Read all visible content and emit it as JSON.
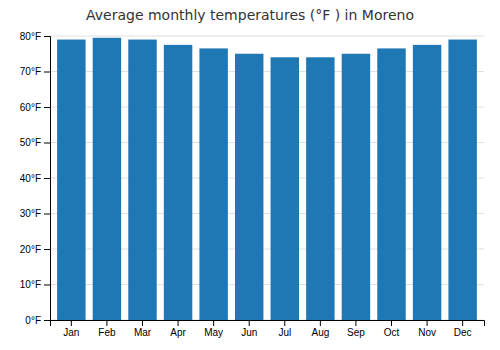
{
  "chart_data": {
    "type": "bar",
    "title": "Average monthly temperatures (°F ) in Moreno",
    "categories": [
      "Jan",
      "Feb",
      "Mar",
      "Apr",
      "May",
      "Jun",
      "Jul",
      "Aug",
      "Sep",
      "Oct",
      "Nov",
      "Dec"
    ],
    "values": [
      79,
      79.5,
      79,
      77.5,
      76.5,
      75,
      74,
      74,
      75,
      76.5,
      77.5,
      79
    ],
    "ylim": [
      0,
      80
    ],
    "yticks": [
      {
        "value": 0,
        "label": "0°F"
      },
      {
        "value": 10,
        "label": "10°F"
      },
      {
        "value": 20,
        "label": "20°F"
      },
      {
        "value": 30,
        "label": "30°F"
      },
      {
        "value": 40,
        "label": "40°F"
      },
      {
        "value": 50,
        "label": "50°F"
      },
      {
        "value": 60,
        "label": "60°F"
      },
      {
        "value": 70,
        "label": "70°F"
      },
      {
        "value": 80,
        "label": "80°F"
      }
    ],
    "grid": true
  }
}
